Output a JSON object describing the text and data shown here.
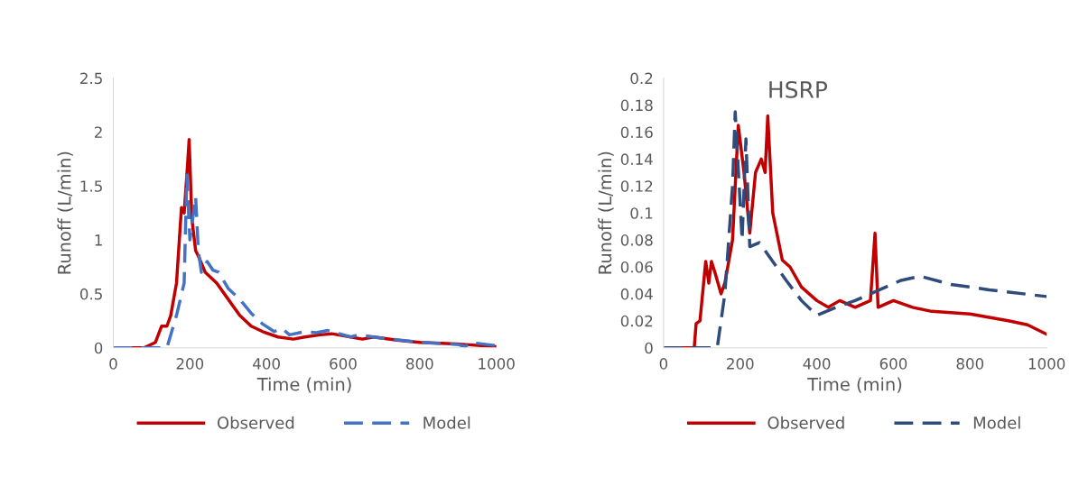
{
  "chart_data": [
    {
      "type": "line",
      "xlabel": "Time (min)",
      "ylabel": "Runoff (L/min)",
      "xlim": [
        0,
        1000
      ],
      "xticks": [
        0,
        200,
        400,
        600,
        800,
        1000
      ],
      "ylim": [
        0,
        2.5
      ],
      "yticks": [
        0,
        0.5,
        1,
        1.5,
        2,
        2.5
      ],
      "grid": false,
      "legend": "bottom",
      "marker": "none",
      "series": [
        {
          "name": "Observed",
          "color": "#c00000",
          "line_style": "solid",
          "x": [
            0,
            80,
            110,
            126,
            140,
            150,
            165,
            178,
            185,
            192,
            198,
            205,
            215,
            222,
            240,
            270,
            300,
            330,
            360,
            390,
            430,
            470,
            500,
            540,
            570,
            620,
            650,
            680,
            740,
            800,
            870,
            920,
            1000
          ],
          "values": [
            0,
            0,
            0.05,
            0.2,
            0.2,
            0.3,
            0.6,
            1.3,
            1.25,
            1.6,
            1.93,
            1.2,
            0.9,
            0.85,
            0.7,
            0.6,
            0.45,
            0.3,
            0.2,
            0.15,
            0.1,
            0.08,
            0.1,
            0.12,
            0.13,
            0.1,
            0.08,
            0.1,
            0.07,
            0.05,
            0.04,
            0.03,
            0.01
          ]
        },
        {
          "name": "Model",
          "color": "#4472c4",
          "line_style": "dashed",
          "x": [
            0,
            140,
            165,
            185,
            192,
            200,
            215,
            222,
            230,
            245,
            260,
            275,
            300,
            330,
            360,
            390,
            420,
            440,
            460,
            500,
            530,
            560,
            620,
            640,
            700,
            800,
            900,
            920,
            930,
            1000
          ],
          "values": [
            0,
            0,
            0.3,
            0.6,
            1.6,
            1.0,
            1.4,
            0.9,
            0.7,
            0.8,
            0.72,
            0.7,
            0.55,
            0.45,
            0.32,
            0.22,
            0.15,
            0.18,
            0.12,
            0.15,
            0.14,
            0.16,
            0.1,
            0.12,
            0.09,
            0.05,
            0.03,
            0.01,
            0.05,
            0.02
          ]
        }
      ]
    },
    {
      "type": "line",
      "title": "HSRP",
      "xlabel": "Time (min)",
      "ylabel": "Runoff (L/min)",
      "xlim": [
        0,
        1000
      ],
      "xticks": [
        0,
        200,
        400,
        600,
        800,
        1000
      ],
      "ylim": [
        0,
        0.2
      ],
      "yticks": [
        0,
        0.02,
        0.04,
        0.06,
        0.08,
        0.1,
        0.12,
        0.14,
        0.16,
        0.18,
        0.2
      ],
      "grid": false,
      "legend": "bottom",
      "marker": "none",
      "series": [
        {
          "name": "Observed",
          "color": "#c00000",
          "line_style": "solid",
          "x": [
            0,
            80,
            85,
            95,
            110,
            118,
            125,
            135,
            150,
            160,
            180,
            195,
            210,
            225,
            240,
            255,
            265,
            272,
            285,
            310,
            330,
            360,
            400,
            430,
            460,
            500,
            540,
            552,
            560,
            600,
            650,
            700,
            800,
            900,
            950,
            1000
          ],
          "values": [
            0,
            0,
            0.018,
            0.02,
            0.064,
            0.048,
            0.064,
            0.055,
            0.04,
            0.048,
            0.08,
            0.165,
            0.13,
            0.085,
            0.13,
            0.14,
            0.13,
            0.172,
            0.1,
            0.065,
            0.06,
            0.045,
            0.035,
            0.03,
            0.035,
            0.03,
            0.035,
            0.085,
            0.03,
            0.035,
            0.03,
            0.027,
            0.025,
            0.02,
            0.017,
            0.01
          ]
        },
        {
          "name": "Model",
          "color": "#2f4b7c",
          "line_style": "dashed",
          "x": [
            0,
            140,
            160,
            180,
            187,
            205,
            215,
            225,
            250,
            270,
            320,
            360,
            400,
            450,
            500,
            580,
            620,
            670,
            750,
            850,
            1000
          ],
          "values": [
            0,
            0,
            0.04,
            0.12,
            0.175,
            0.08,
            0.155,
            0.075,
            0.078,
            0.07,
            0.05,
            0.035,
            0.024,
            0.03,
            0.035,
            0.045,
            0.05,
            0.053,
            0.047,
            0.043,
            0.038
          ]
        }
      ]
    }
  ]
}
